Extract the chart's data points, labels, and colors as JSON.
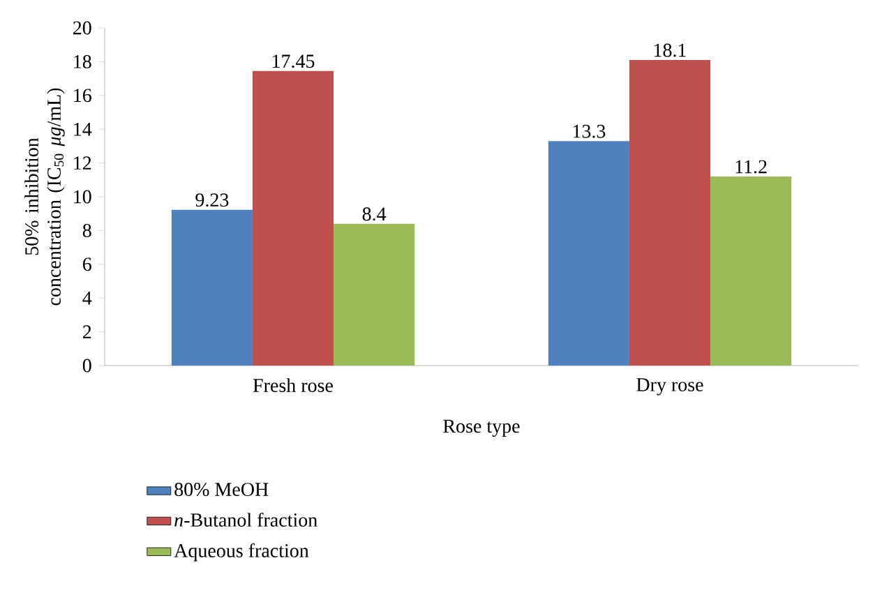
{
  "chart_data": {
    "type": "bar",
    "xlabel": "Rose type",
    "ylabel": "50% inhibition concentration (IC$_{50}$ *μg*/mL)",
    "categories": [
      "Fresh rose",
      "Dry rose"
    ],
    "series": [
      {
        "name": "80% MeOH",
        "color": "#4f81bd",
        "values": [
          9.23,
          13.3
        ]
      },
      {
        "name": "*n*-Butanol fraction",
        "color": "#c0504d",
        "values": [
          17.45,
          18.1
        ]
      },
      {
        "name": "Aqueous fraction",
        "color": "#9bbb59",
        "values": [
          8.4,
          11.2
        ]
      }
    ],
    "ylim": [
      0,
      20
    ],
    "yticks": [
      0,
      2,
      4,
      6,
      8,
      10,
      12,
      14,
      16,
      18,
      20
    ],
    "data_labels": true,
    "legend": "bottom left",
    "grid": false
  }
}
